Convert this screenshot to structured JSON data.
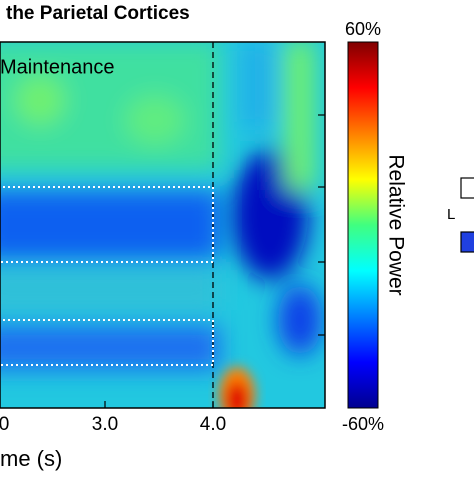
{
  "figure": {
    "title": "the Parietal Cortices",
    "annotation": "Maintenance",
    "colorbar": {
      "max_label": "60%",
      "min_label": "-60%",
      "label": "Relative Power"
    },
    "x_axis": {
      "ticks": [
        "0",
        "3.0",
        "4.0"
      ],
      "label": "me (s)"
    },
    "side_label": "L"
  }
}
